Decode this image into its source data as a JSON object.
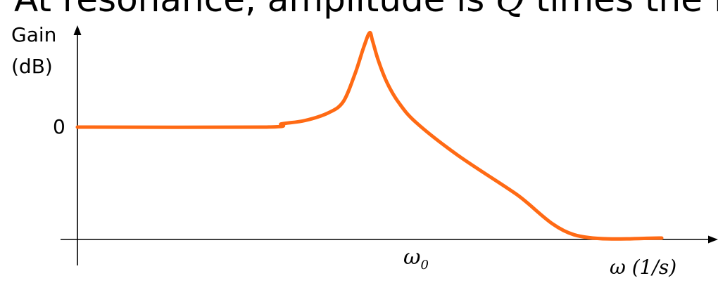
{
  "title": {
    "before": "At resonance, amplitude is ",
    "q": "Q",
    "after": " times the DC response"
  },
  "chart_data": {
    "type": "line",
    "title": "",
    "ylabel_line1": "Gain",
    "ylabel_line2": "(dB)",
    "ytick_zero": "0",
    "xtick_base": "ω",
    "xtick_sub": "0",
    "xlabel": "ω (1/s)",
    "series": [
      {
        "color": "#ff6a14",
        "points": [
          [
            0.0,
            0.0
          ],
          [
            0.32,
            0.0
          ],
          [
            0.35,
            0.03
          ],
          [
            0.39,
            0.06
          ],
          [
            0.43,
            0.13
          ],
          [
            0.455,
            0.23
          ],
          [
            0.475,
            0.48
          ],
          [
            0.49,
            0.72
          ],
          [
            0.5,
            0.85
          ],
          [
            0.505,
            0.78
          ],
          [
            0.515,
            0.6
          ],
          [
            0.53,
            0.4
          ],
          [
            0.55,
            0.22
          ],
          [
            0.58,
            0.04
          ],
          [
            0.65,
            -0.25
          ],
          [
            0.75,
            -0.6
          ],
          [
            0.85,
            -0.97
          ],
          [
            1.0,
            -1.0
          ]
        ]
      }
    ]
  },
  "icons": {
    "y_arrow": "up-arrow-icon",
    "x_arrow": "right-arrow-icon"
  }
}
